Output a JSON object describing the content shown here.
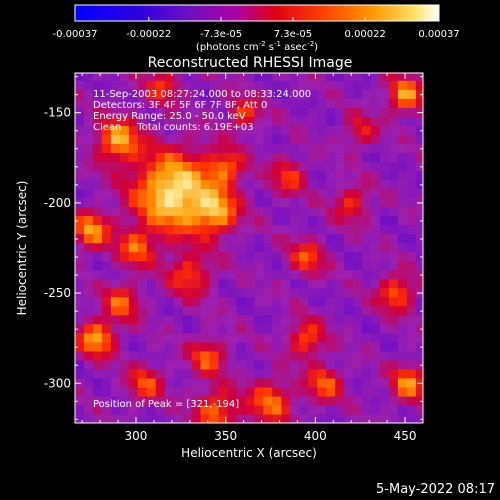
{
  "colorbar": {
    "tick_labels": [
      "-0.00037",
      "-0.00022",
      "-7.3e-05",
      "7.3e-05",
      "0.00022",
      "0.00037"
    ],
    "tick_values": [
      -0.00037,
      -0.00022,
      -7.3e-05,
      7.3e-05,
      0.00022,
      0.00037
    ],
    "range": [
      -0.00037,
      0.00037
    ],
    "unit_label": "(photons cm",
    "unit_exp1": "-2",
    "unit_mid": " s",
    "unit_exp2": "-1",
    "unit_mid2": " asec",
    "unit_exp3": "-2",
    "unit_close": ")"
  },
  "chart_data": {
    "type": "heatmap",
    "title": "Reconstructed RHESSI Image",
    "xlabel": "Heliocentric X (arcsec)",
    "ylabel": "Heliocentric Y (arcsec)",
    "xlim": [
      266,
      460
    ],
    "ylim": [
      -322,
      -128
    ],
    "x_ticks": [
      300,
      350,
      400,
      450
    ],
    "y_ticks": [
      -150,
      -200,
      -250,
      -300
    ],
    "colormap": [
      "#0000ff",
      "#6a0cc8",
      "#9a20b0",
      "#d0003a",
      "#ff3000",
      "#ff9a00",
      "#ffe080",
      "#ffffff"
    ],
    "annotations": [
      "11-Sep-2003 08:27:24.000 to 08:33:24.000",
      "Detectors: 3F 4F 5F 6F 7F 8F, Att 0",
      "Energy Range: 25.0 - 50.0 keV",
      "Clean     Total counts: 6.19E+03"
    ],
    "peak_label": "Position of Peak = [321,-194]",
    "peak": [
      321,
      -194
    ]
  },
  "footer": {
    "timestamp": "5-May-2022 08:17"
  }
}
